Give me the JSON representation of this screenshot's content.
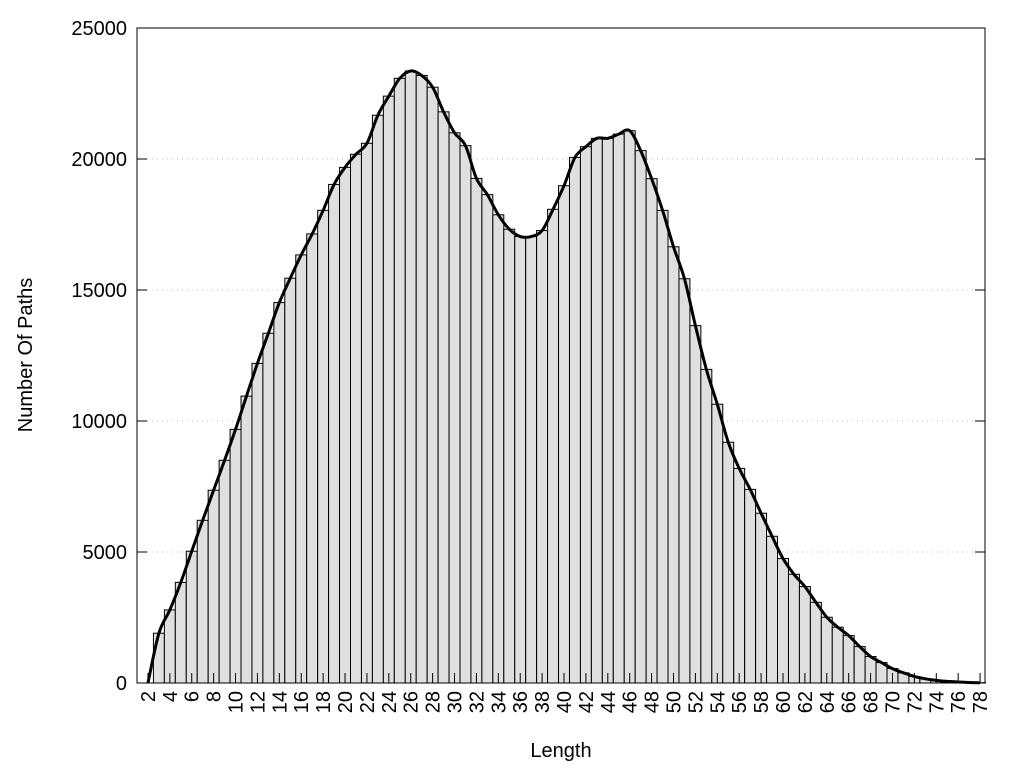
{
  "chart_data": {
    "type": "bar",
    "title": "",
    "xlabel": "Length",
    "ylabel": "Number Of Paths",
    "xlim": [
      1,
      78.45
    ],
    "ylim": [
      0,
      25000
    ],
    "grid": "horizontal dotted",
    "x_ticks": [
      2,
      4,
      6,
      8,
      10,
      12,
      14,
      16,
      18,
      20,
      22,
      24,
      26,
      28,
      30,
      32,
      34,
      36,
      38,
      40,
      42,
      44,
      46,
      48,
      50,
      52,
      54,
      56,
      58,
      60,
      62,
      64,
      66,
      68,
      70,
      72,
      74,
      76,
      78
    ],
    "y_ticks": [
      0,
      5000,
      10000,
      15000,
      20000,
      25000
    ],
    "bar_fill": "#dfdfdf",
    "line_color": "#000000",
    "x": [
      3,
      4,
      5,
      6,
      7,
      8,
      9,
      10,
      11,
      12,
      13,
      14,
      15,
      16,
      17,
      18,
      19,
      20,
      21,
      22,
      23,
      24,
      25,
      26,
      27,
      28,
      29,
      30,
      31,
      32,
      33,
      34,
      35,
      36,
      37,
      38,
      39,
      40,
      41,
      42,
      43,
      44,
      45,
      46,
      47,
      48,
      49,
      50,
      51,
      52,
      53,
      54,
      55,
      56,
      57,
      58,
      59,
      60,
      61,
      62,
      63,
      64,
      65,
      66,
      67,
      68,
      69,
      70,
      71,
      72,
      73,
      74,
      75,
      76,
      77,
      78
    ],
    "values": [
      1900,
      2790,
      3840,
      5030,
      6210,
      7360,
      8500,
      9680,
      10950,
      12200,
      13350,
      14520,
      15450,
      16340,
      17140,
      18040,
      19030,
      19680,
      20180,
      20600,
      21670,
      22400,
      23080,
      23360,
      23190,
      22740,
      21800,
      21000,
      20510,
      19260,
      18640,
      17870,
      17320,
      17040,
      17040,
      17270,
      18080,
      18980,
      20060,
      20470,
      20790,
      20790,
      20950,
      21080,
      20320,
      19250,
      18040,
      16650,
      15430,
      13640,
      11970,
      10640,
      9190,
      8190,
      7390,
      6480,
      5600,
      4750,
      4150,
      3680,
      3080,
      2510,
      2130,
      1810,
      1390,
      1010,
      780,
      550,
      390,
      250,
      160,
      100,
      60,
      40,
      20,
      10
    ],
    "smooth_curve_start": [
      2,
      0
    ]
  }
}
